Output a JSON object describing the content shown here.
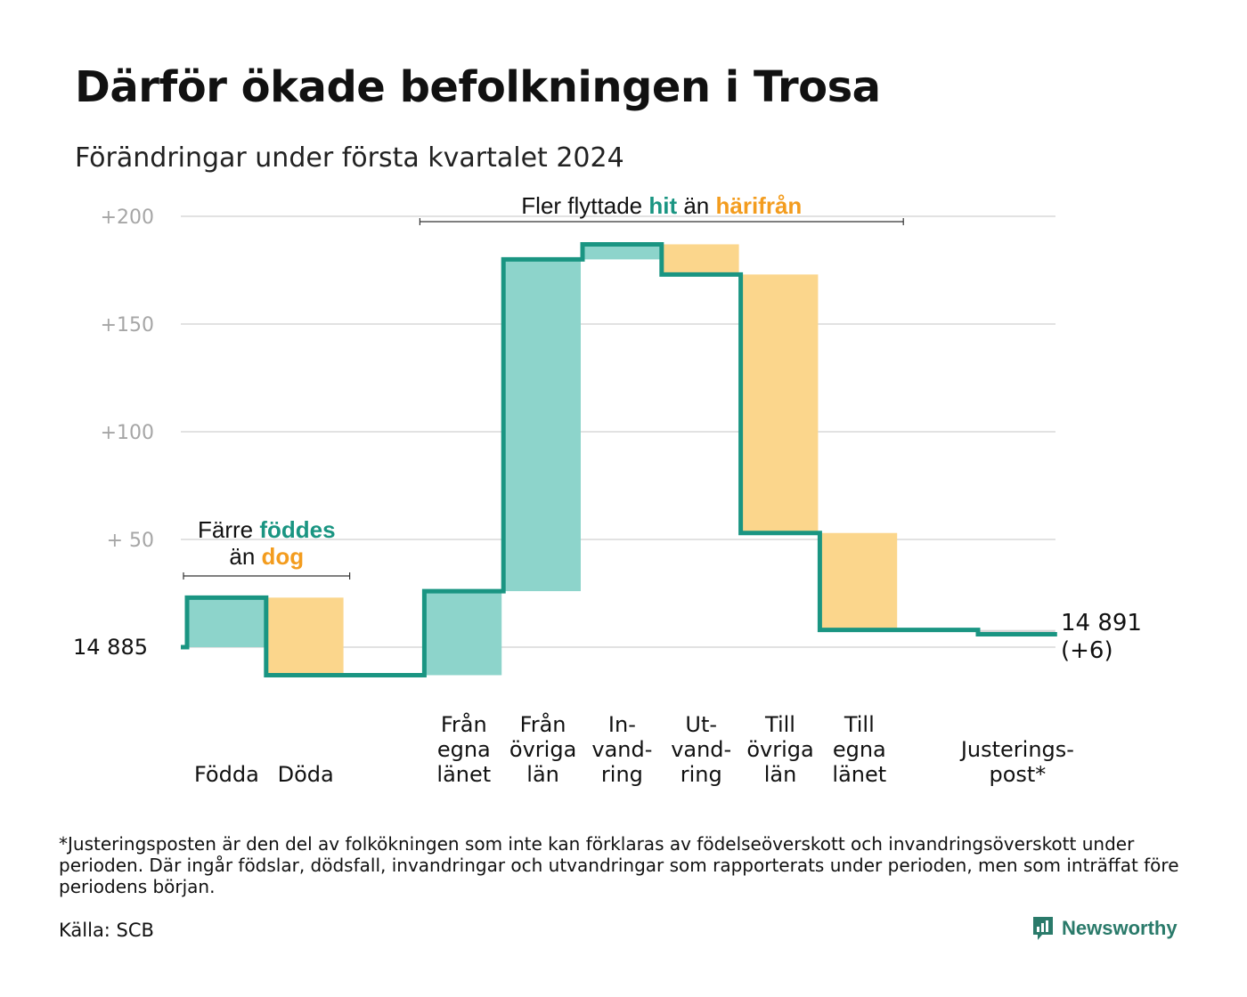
{
  "header": {
    "title": "Därför ökade befolkningen i Trosa",
    "subtitle": "Förändringar under första kvartalet 2024"
  },
  "chart_data": {
    "type": "waterfall",
    "start_value": 14885,
    "start_label": "14  885",
    "end_value": 14891,
    "end_label": "14 891",
    "end_change_label": "(+6)",
    "y_ticks": [
      {
        "value": 200,
        "label": "+200"
      },
      {
        "value": 150,
        "label": "+150"
      },
      {
        "value": 100,
        "label": "+100"
      },
      {
        "value": 50,
        "label": "+  50"
      },
      {
        "value": 0,
        "label": ""
      }
    ],
    "ylim": [
      -20,
      205
    ],
    "steps": [
      {
        "label_lines": [
          "Födda"
        ],
        "value": 23,
        "kind": "increase"
      },
      {
        "label_lines": [
          "Döda"
        ],
        "value": -36,
        "kind": "decrease"
      },
      {
        "label_lines": [],
        "value": 0,
        "kind": "gap"
      },
      {
        "label_lines": [
          "Från",
          "egna",
          "länet"
        ],
        "value": 39,
        "kind": "increase"
      },
      {
        "label_lines": [
          "Från",
          "övriga",
          "län"
        ],
        "value": 154,
        "kind": "increase"
      },
      {
        "label_lines": [
          "In-",
          "vand-",
          "ring"
        ],
        "value": 7,
        "kind": "increase"
      },
      {
        "label_lines": [
          "Ut-",
          "vand-",
          "ring"
        ],
        "value": -14,
        "kind": "decrease"
      },
      {
        "label_lines": [
          "Till",
          "övriga",
          "län"
        ],
        "value": -120,
        "kind": "decrease"
      },
      {
        "label_lines": [
          "Till",
          "egna",
          "länet"
        ],
        "value": -45,
        "kind": "decrease"
      },
      {
        "label_lines": [],
        "value": 0,
        "kind": "gap"
      },
      {
        "label_lines": [
          "Justerings-",
          "post*"
        ],
        "value": -2,
        "kind": "adjustment"
      }
    ],
    "annotations": [
      {
        "parts": [
          {
            "text": "Fler flyttade ",
            "color": "dark"
          },
          {
            "text": "hit",
            "color": "teal"
          },
          {
            "text": " än ",
            "color": "dark"
          },
          {
            "text": "härifrån",
            "color": "orange"
          }
        ],
        "from_step": 3,
        "to_step": 8
      },
      {
        "line1": [
          {
            "text": "Färre ",
            "color": "dark"
          },
          {
            "text": "föddes",
            "color": "teal"
          }
        ],
        "line2": [
          {
            "text": "än ",
            "color": "dark"
          },
          {
            "text": "dog",
            "color": "orange"
          }
        ],
        "from_step": 0,
        "to_step": 1
      }
    ],
    "colors": {
      "increase_fill": "#8dd4cb",
      "decrease_fill": "#fbd68c",
      "adjustment_fill": "#d6d6d6",
      "line": "#1a9582",
      "teal_text": "#1a9582",
      "orange_text": "#f39c1e",
      "grid": "#e2e2e2",
      "tick_text": "#a6a6a6"
    }
  },
  "footer": {
    "footnote": "*Justeringsposten är den del av folkökningen som inte kan förklaras av födelseöverskott och invandringsöverskott under perioden. Där ingår födslar, dödsfall, invandringar och utvandringar som rapporterats under perioden, men som inträffat före periodens början.",
    "source": "Källa: SCB",
    "brand": "Newsworthy"
  }
}
